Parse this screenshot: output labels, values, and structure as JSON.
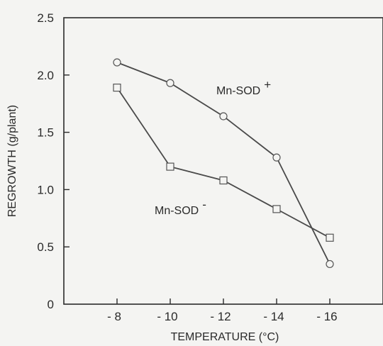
{
  "chart_data": {
    "type": "line",
    "xlabel": "TEMPERATURE (°C)",
    "ylabel": "REGROWTH (g/plant)",
    "x": [
      -8,
      -10,
      -12,
      -14,
      -16
    ],
    "x_tick_labels": [
      "- 8",
      "- 10",
      "- 12",
      "- 14",
      "- 16"
    ],
    "y_ticks": [
      0,
      0.5,
      1.0,
      1.5,
      2.0,
      2.5
    ],
    "y_tick_labels": [
      "0",
      "0.5",
      "1.0",
      "1.5",
      "2.0",
      "2.5"
    ],
    "xlim": [
      -6,
      -18
    ],
    "ylim": [
      0,
      2.5
    ],
    "grid": false,
    "series": [
      {
        "name": "Mn-SOD",
        "sign": "+",
        "marker": "circle",
        "values": [
          2.11,
          1.93,
          1.64,
          1.28,
          0.35
        ]
      },
      {
        "name": "Mn-SOD",
        "sign": "-",
        "marker": "square",
        "values": [
          1.89,
          1.2,
          1.08,
          0.83,
          0.58
        ]
      }
    ]
  }
}
